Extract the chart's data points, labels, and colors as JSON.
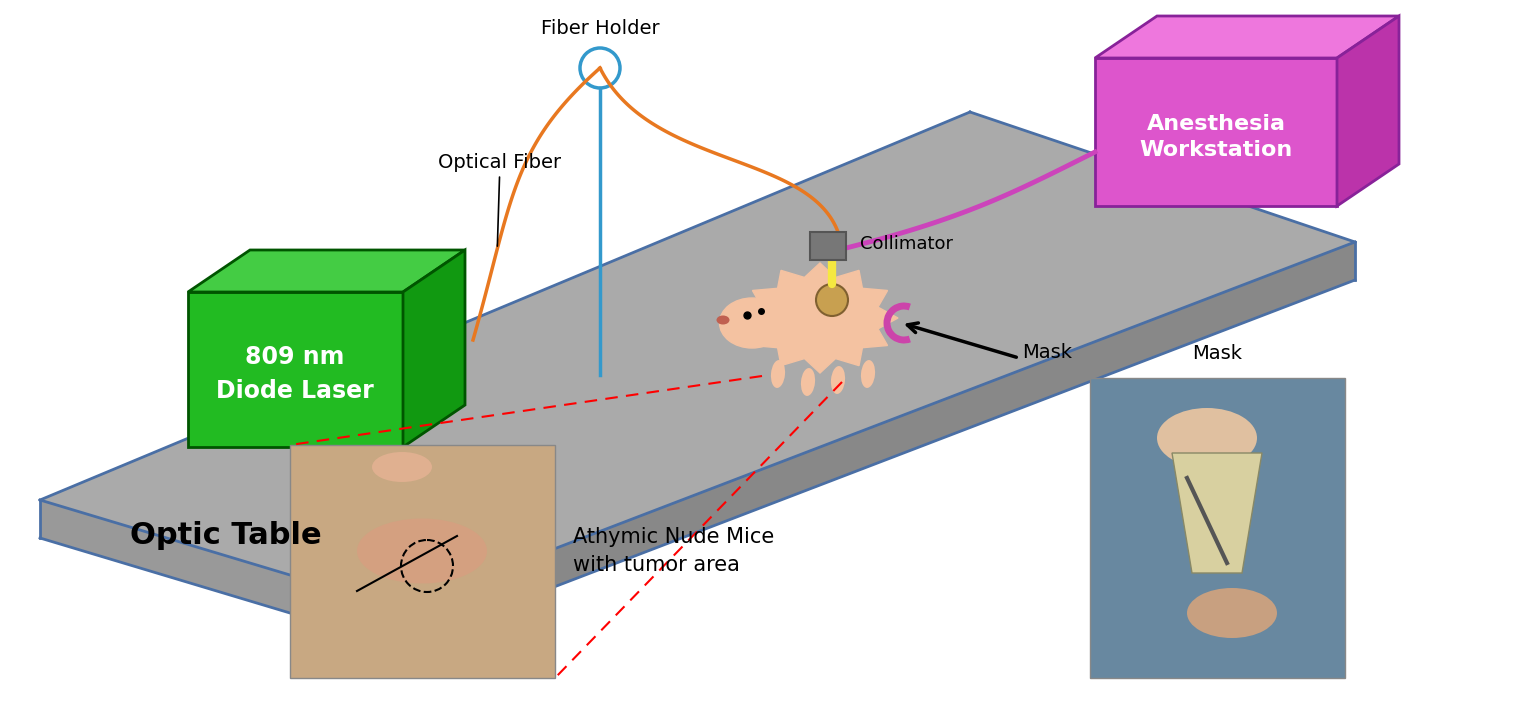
{
  "bg_color": "#ffffff",
  "table_top_color": "#aaaaaa",
  "table_front_color": "#888888",
  "table_left_color": "#999999",
  "table_edge_color": "#4a6fa5",
  "laser_box_face_color": "#22bb22",
  "laser_box_top_color": "#44cc44",
  "laser_box_right_color": "#119911",
  "laser_box_edge_color": "#005500",
  "laser_text": "809 nm\nDiode Laser",
  "anesthesia_box_face_color": "#dd55cc",
  "anesthesia_box_top_color": "#ee77dd",
  "anesthesia_box_right_color": "#bb33aa",
  "anesthesia_box_edge_color": "#882299",
  "anesthesia_text": "Anesthesia\nWorkstation",
  "optic_table_label": "Optic Table",
  "fiber_holder_label": "Fiber Holder",
  "optical_fiber_label": "Optical Fiber",
  "collimator_label": "Collimator",
  "mask_label": "Mask",
  "mice_label": "Athymic Nude Mice\nwith tumor area",
  "orange_fiber_color": "#e87820",
  "blue_fiber_color": "#3399cc",
  "purple_tube_color": "#cc44bb",
  "collimator_color": "#777777",
  "mouse_body_color": "#f4c2a1",
  "tumor_color": "#c8a050",
  "laser_beam_color": "#f5e840",
  "mask_arc_color": "#cc44aa",
  "dashed_color": "#ff0000",
  "photo1_color": "#c8a882",
  "photo2_color": "#7090a0"
}
